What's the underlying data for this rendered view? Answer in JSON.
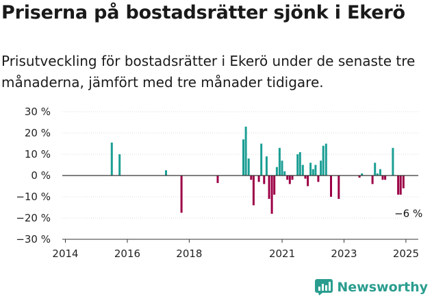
{
  "header": {
    "title": "Priserna på bostadsrätter sjönk i Ekerö",
    "subtitle": "Prisutveckling för bostadsrätter i Ekerö under de senaste tre månaderna, jämfört med tre månader tidigare."
  },
  "brand": {
    "name": "Newsworthy"
  },
  "colors": {
    "positive": "#1a9e94",
    "negative": "#9c0046",
    "axis": "#333333",
    "grid": "#d9d9d9"
  },
  "chart_data": {
    "type": "bar",
    "title": "",
    "xlabel": "",
    "ylabel": "",
    "ylim": [
      -30,
      30
    ],
    "y_ticks": [
      30,
      20,
      10,
      0,
      -10,
      -20,
      -30
    ],
    "y_tick_labels": [
      "30 %",
      "20 %",
      "10 %",
      "0 %",
      "−10 %",
      "−20 %",
      "−30 %"
    ],
    "x_ticks": [
      2014,
      2016,
      2018,
      2021,
      2023,
      2025
    ],
    "x_tick_labels": [
      "2014",
      "2016",
      "2018",
      "2021",
      "2023",
      "2025"
    ],
    "xlim": [
      2013.9,
      2025.4
    ],
    "grid": true,
    "annotation": {
      "text": "−6 %",
      "x": 2024.95,
      "y": -6
    },
    "points": [
      {
        "x": 2015.5,
        "y": 15.5
      },
      {
        "x": 2015.75,
        "y": 10
      },
      {
        "x": 2017.25,
        "y": 2.5
      },
      {
        "x": 2017.75,
        "y": -17.5
      },
      {
        "x": 2018.92,
        "y": -3.5
      },
      {
        "x": 2019.75,
        "y": 17
      },
      {
        "x": 2019.83,
        "y": 23
      },
      {
        "x": 2019.92,
        "y": 8
      },
      {
        "x": 2020.0,
        "y": -2
      },
      {
        "x": 2020.08,
        "y": -14
      },
      {
        "x": 2020.25,
        "y": -3
      },
      {
        "x": 2020.33,
        "y": 15
      },
      {
        "x": 2020.42,
        "y": -4
      },
      {
        "x": 2020.5,
        "y": 9
      },
      {
        "x": 2020.58,
        "y": -11
      },
      {
        "x": 2020.67,
        "y": -18
      },
      {
        "x": 2020.75,
        "y": -9
      },
      {
        "x": 2020.83,
        "y": 4
      },
      {
        "x": 2020.92,
        "y": 13
      },
      {
        "x": 2021.0,
        "y": 7
      },
      {
        "x": 2021.08,
        "y": 2
      },
      {
        "x": 2021.17,
        "y": -2
      },
      {
        "x": 2021.25,
        "y": -4
      },
      {
        "x": 2021.33,
        "y": -2
      },
      {
        "x": 2021.5,
        "y": 10
      },
      {
        "x": 2021.58,
        "y": 11
      },
      {
        "x": 2021.67,
        "y": 5
      },
      {
        "x": 2021.75,
        "y": -1.5
      },
      {
        "x": 2021.83,
        "y": -5
      },
      {
        "x": 2021.92,
        "y": 6
      },
      {
        "x": 2022.0,
        "y": 3
      },
      {
        "x": 2022.08,
        "y": 5
      },
      {
        "x": 2022.17,
        "y": -3
      },
      {
        "x": 2022.25,
        "y": 7
      },
      {
        "x": 2022.33,
        "y": 14
      },
      {
        "x": 2022.42,
        "y": 15
      },
      {
        "x": 2022.58,
        "y": -10
      },
      {
        "x": 2022.83,
        "y": -11
      },
      {
        "x": 2023.5,
        "y": -1
      },
      {
        "x": 2023.58,
        "y": 1
      },
      {
        "x": 2023.92,
        "y": -4
      },
      {
        "x": 2024.0,
        "y": 6
      },
      {
        "x": 2024.08,
        "y": 1
      },
      {
        "x": 2024.17,
        "y": 3
      },
      {
        "x": 2024.25,
        "y": -2
      },
      {
        "x": 2024.33,
        "y": -2
      },
      {
        "x": 2024.58,
        "y": 13
      },
      {
        "x": 2024.75,
        "y": -9
      },
      {
        "x": 2024.83,
        "y": -9
      },
      {
        "x": 2024.92,
        "y": -6
      }
    ]
  }
}
